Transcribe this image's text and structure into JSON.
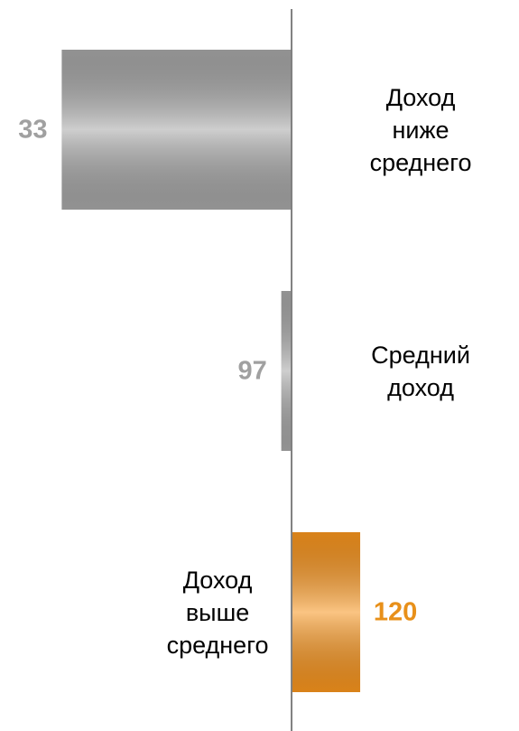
{
  "chart_data": {
    "type": "bar",
    "orientation": "horizontal",
    "categories": [
      "Доход ниже\nсреднего",
      "Средний доход",
      "Доход\nвыше\nсреднего"
    ],
    "values": [
      33,
      97,
      120
    ],
    "colors": [
      "#a6a6a6",
      "#a6a6a6",
      "#f7941d"
    ],
    "label_colors": [
      "#a0a0a0",
      "#a0a0a0",
      "#e8901a"
    ],
    "baseline": 100,
    "xlim": [
      15,
      166.3
    ]
  }
}
